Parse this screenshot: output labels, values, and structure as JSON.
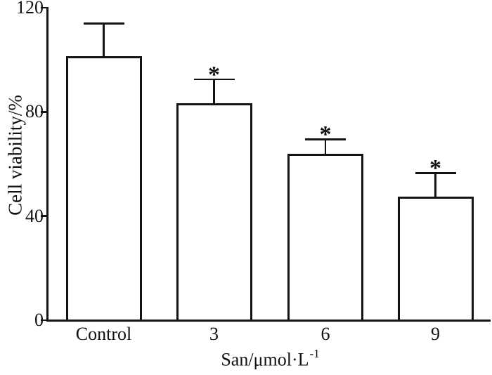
{
  "figure": {
    "background": "#ffffff",
    "line_color": "#141414",
    "text_color": "#111111"
  },
  "chart_data": {
    "type": "bar",
    "title": "",
    "categories": [
      "Control",
      "3",
      "6",
      "9"
    ],
    "values": [
      101,
      83,
      63.5,
      47
    ],
    "error_bars": [
      13,
      9.5,
      6,
      9.5
    ],
    "significance_markers": [
      "",
      "*",
      "*",
      "*"
    ],
    "xlabel": "San/μmol·L⁻¹",
    "xlabel_base": "San/μmol·L",
    "xlabel_superscript": "-1",
    "ylabel": "Cell viability/%",
    "ylim": [
      0,
      120
    ],
    "yticks": [
      0,
      40,
      80,
      120
    ],
    "grid": false,
    "legend": "none",
    "bar_fill": "#ffffff",
    "bar_stroke": "#141414",
    "error_bar_style": "cap-and-stem",
    "frame": "open-top-right"
  }
}
